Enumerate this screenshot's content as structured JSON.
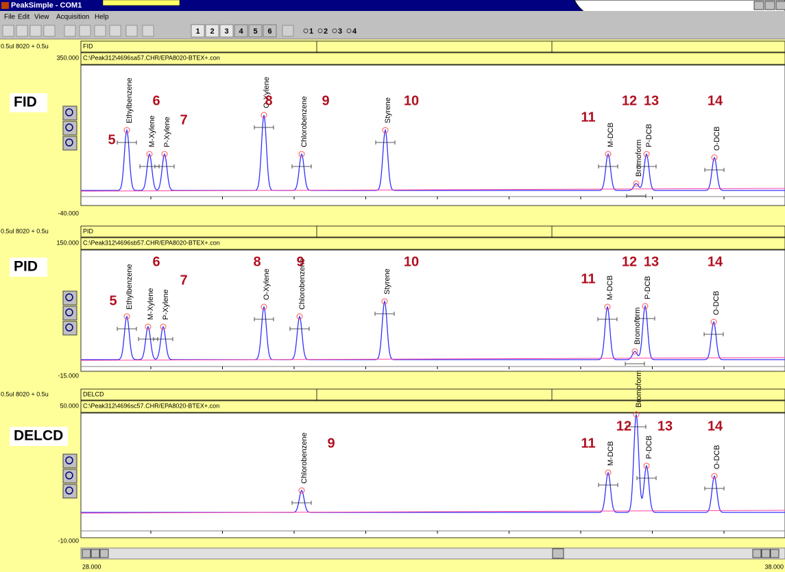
{
  "window": {
    "title": "PeakSimple - COM1"
  },
  "menu": [
    "File",
    "Edit",
    "View",
    "Acquisition",
    "Help"
  ],
  "toolbar": {
    "channels": [
      "1",
      "2",
      "3",
      "4",
      "5",
      "6"
    ],
    "detectors": [
      "1",
      "2",
      "3",
      "4"
    ]
  },
  "panels": [
    {
      "sample": "0.5ul 8020 + 0.5u",
      "detector": "FID",
      "y_max": "350.000",
      "file": "C:\\Peak312\\4696sa57.CHR/EPA8020-BTEX+.con",
      "y_min": "-40.000",
      "label": "FID",
      "peaks": [
        {
          "number": "5",
          "name": "Ethylbenzene"
        },
        {
          "number": "6",
          "name": "M-Xylene"
        },
        {
          "number": "7",
          "name": "P-Xylene"
        },
        {
          "number": "8",
          "name": "O-Xylene"
        },
        {
          "number": "9",
          "name": "Chlorobenzene"
        },
        {
          "number": "10",
          "name": "Styrene"
        },
        {
          "number": "11",
          "name": "M-DCB"
        },
        {
          "number": "12",
          "name": "Bromoform"
        },
        {
          "number": "13",
          "name": "P-DCB"
        },
        {
          "number": "14",
          "name": "O-DCB"
        }
      ]
    },
    {
      "sample": "0.5ul 8020 + 0.5u",
      "detector": "PID",
      "y_max": "150.000",
      "file": "C:\\Peak312\\4696sb57.CHR/EPA8020-BTEX+.con",
      "y_min": "-15.000",
      "label": "PID",
      "peaks": [
        {
          "number": "5",
          "name": "Ethylbenzene"
        },
        {
          "number": "6",
          "name": "M-Xylene"
        },
        {
          "number": "7",
          "name": "P-Xylene"
        },
        {
          "number": "8",
          "name": "O-Xylene"
        },
        {
          "number": "9",
          "name": "Chlorobenzene"
        },
        {
          "number": "10",
          "name": "Styrene"
        },
        {
          "number": "11",
          "name": "M-DCB"
        },
        {
          "number": "12",
          "name": "Bromoform"
        },
        {
          "number": "13",
          "name": "P-DCB"
        },
        {
          "number": "14",
          "name": "O-DCB"
        }
      ]
    },
    {
      "sample": "0.5ul 8020 + 0.5u",
      "detector": "DELCD",
      "y_max": "50.000",
      "file": "C:\\Peak312\\4696sc57.CHR/EPA8020-BTEX+.con",
      "y_min": "-10.000",
      "label": "DELCD",
      "peaks": [
        {
          "number": "9",
          "name": "Chlorobenzene"
        },
        {
          "number": "11",
          "name": "M-DCB"
        },
        {
          "number": "12",
          "name": "Bromoform"
        },
        {
          "number": "13",
          "name": "P-DCB"
        },
        {
          "number": "14",
          "name": "O-DCB"
        }
      ]
    }
  ],
  "x_axis": {
    "start": "28.000",
    "end": "38.000"
  }
}
